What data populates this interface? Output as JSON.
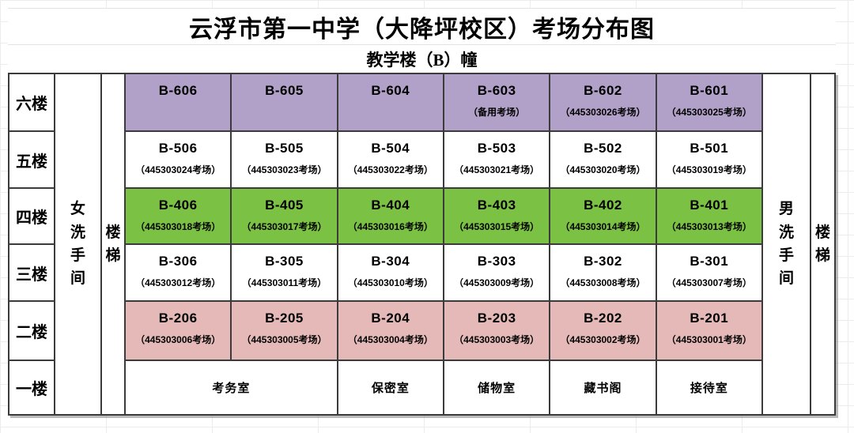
{
  "title": "云浮市第一中学（大降坪校区）考场分布图",
  "subtitle": "教学楼（B）幢",
  "colors": {
    "floor6": "#b1a0c7",
    "floor4": "#7bc143",
    "floor2": "#e5b9b7",
    "grid_border": "#3b3b3b"
  },
  "left_column": {
    "women_restroom": "女洗手间",
    "stairs": "楼梯"
  },
  "right_column": {
    "men_restroom": "男洗手间",
    "stairs": "楼梯"
  },
  "floors": [
    {
      "label": "六楼",
      "rooms": [
        {
          "id": "B-606",
          "note": ""
        },
        {
          "id": "B-605",
          "note": ""
        },
        {
          "id": "B-604",
          "note": ""
        },
        {
          "id": "B-603",
          "note": "（备用考场）"
        },
        {
          "id": "B-602",
          "note": "（445303026考场）"
        },
        {
          "id": "B-601",
          "note": "（445303025考场）"
        }
      ]
    },
    {
      "label": "五楼",
      "rooms": [
        {
          "id": "B-506",
          "note": "（445303024考场）"
        },
        {
          "id": "B-505",
          "note": "（445303023考场）"
        },
        {
          "id": "B-504",
          "note": "（445303022考场）"
        },
        {
          "id": "B-503",
          "note": "（445303021考场）"
        },
        {
          "id": "B-502",
          "note": "（445303020考场）"
        },
        {
          "id": "B-501",
          "note": "（445303019考场）"
        }
      ]
    },
    {
      "label": "四楼",
      "rooms": [
        {
          "id": "B-406",
          "note": "（445303018考场）"
        },
        {
          "id": "B-405",
          "note": "（445303017考场）"
        },
        {
          "id": "B-404",
          "note": "（445303016考场）"
        },
        {
          "id": "B-403",
          "note": "（445303015考场）"
        },
        {
          "id": "B-402",
          "note": "（445303014考场）"
        },
        {
          "id": "B-401",
          "note": "（445303013考场）"
        }
      ]
    },
    {
      "label": "三楼",
      "rooms": [
        {
          "id": "B-306",
          "note": "（445303012考场）"
        },
        {
          "id": "B-305",
          "note": "（445303011考场）"
        },
        {
          "id": "B-304",
          "note": "（445303010考场）"
        },
        {
          "id": "B-303",
          "note": "（445303009考场）"
        },
        {
          "id": "B-302",
          "note": "（445303008考场）"
        },
        {
          "id": "B-301",
          "note": "（445303007考场）"
        }
      ]
    },
    {
      "label": "二楼",
      "rooms": [
        {
          "id": "B-206",
          "note": "（445303006考场）"
        },
        {
          "id": "B-205",
          "note": "（445303005考场）"
        },
        {
          "id": "B-204",
          "note": "（445303004考场）"
        },
        {
          "id": "B-203",
          "note": "（445303003考场）"
        },
        {
          "id": "B-202",
          "note": "（445303002考场）"
        },
        {
          "id": "B-201",
          "note": "（445303001考场）"
        }
      ]
    },
    {
      "label": "一楼"
    }
  ],
  "ground_floor": {
    "rooms": [
      "考务室",
      "保密室",
      "储物室",
      "藏书阁",
      "接待室"
    ]
  }
}
